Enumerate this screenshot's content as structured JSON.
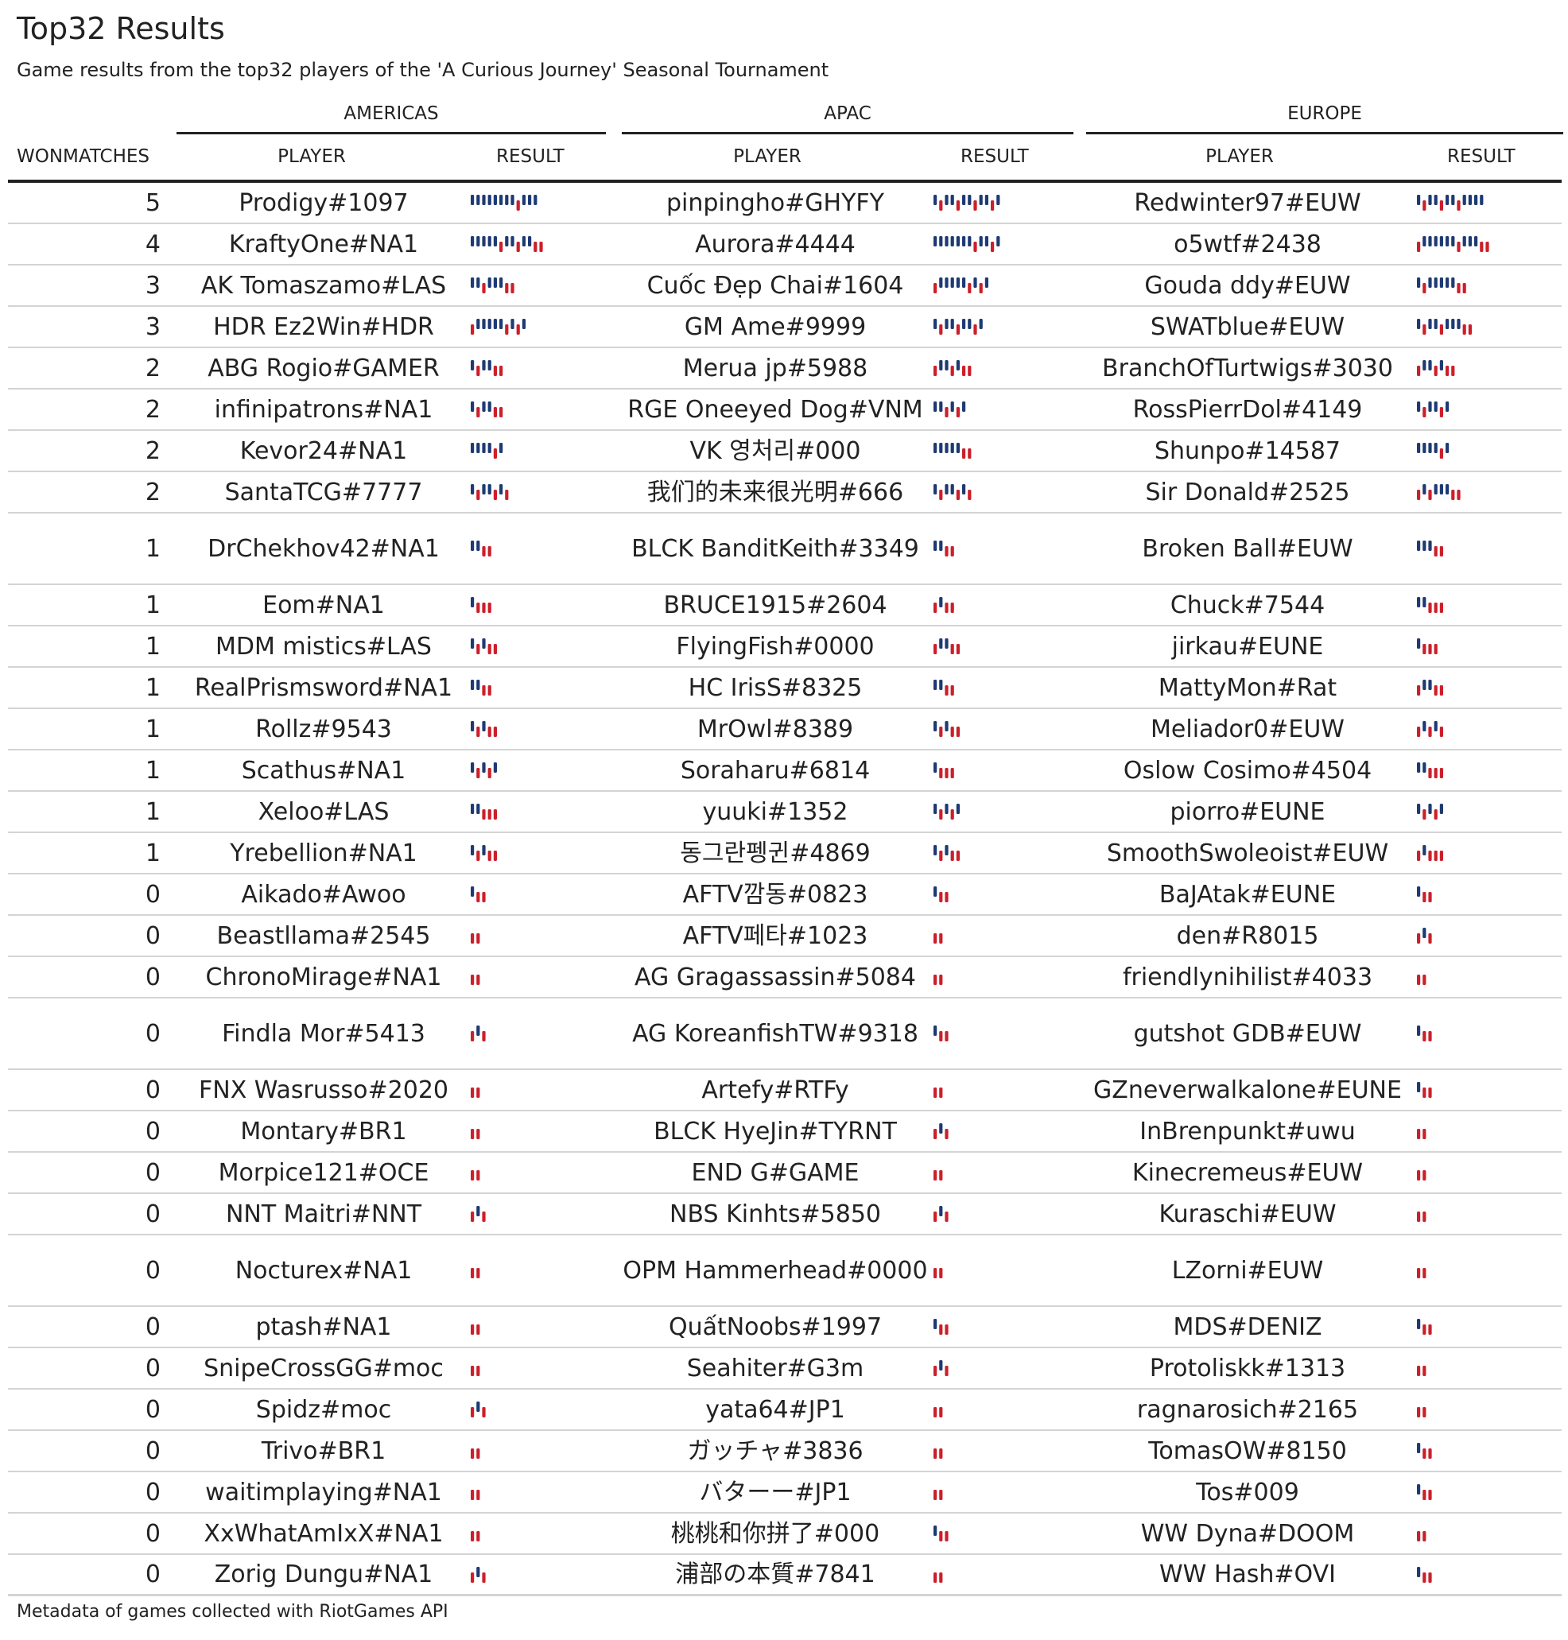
{
  "title": "Top32 Results",
  "subtitle": "Game results from the top32 players of the 'A Curious Journey' Seasonal Tournament",
  "caption": "Metadata of games collected with RiotGames API",
  "colors": {
    "win": "#1d3a73",
    "loss": "#cc1f2a",
    "text": "#222222",
    "rule": "#222222",
    "row_line": "#d4d4d4"
  },
  "columns": {
    "won": "WONMATCHES",
    "player": "PLAYER",
    "result": "RESULT"
  },
  "chart_data": {
    "type": "table",
    "groups": [
      "AMERICAS",
      "APAC",
      "EUROPE"
    ],
    "result_encoding": "W = win (tall navy bar), L = loss (short red bar)",
    "rows": [
      {
        "won": 5,
        "americas": {
          "player": "Prodigy#1097",
          "result": "WWWWWWWWLWWW"
        },
        "apac": {
          "player": "pinpingho#GHYFY",
          "result": "WLWWLWWLWWLW"
        },
        "europe": {
          "player": "Redwinter97#EUW",
          "result": "WLWWLWWLWWWW"
        }
      },
      {
        "won": 4,
        "americas": {
          "player": "KraftyOne#NA1",
          "result": "WWWWWLWWLWWLL"
        },
        "apac": {
          "player": "Aurora#4444",
          "result": "WWWWWWWLWWLW"
        },
        "europe": {
          "player": "o5wtf#2438",
          "result": "LWWWWWWLWWWLL"
        }
      },
      {
        "won": 3,
        "americas": {
          "player": "AK Tomaszamo#LAS",
          "result": "WWLWWWLL"
        },
        "apac": {
          "player": "Cuốc Đẹp Chai#1604",
          "result": "LWWWWWLWLW"
        },
        "europe": {
          "player": "Gouda ddy#EUW",
          "result": "WLWWWWWLL"
        }
      },
      {
        "won": 3,
        "americas": {
          "player": "HDR Ez2Win#HDR",
          "result": "LWWWWWLWLW"
        },
        "apac": {
          "player": "GM Ame#9999",
          "result": "WLWWLWWLW"
        },
        "europe": {
          "player": "SWATblue#EUW",
          "result": "WLWWLWWWLL"
        }
      },
      {
        "won": 2,
        "americas": {
          "player": "ABG Rogio#GAMER",
          "result": "WLWWLL"
        },
        "apac": {
          "player": "Merua jp#5988",
          "result": "LWWLWLL"
        },
        "europe": {
          "player": "BranchOfTurtwigs#3030",
          "result": "LWWLWLL"
        }
      },
      {
        "won": 2,
        "americas": {
          "player": "infinipatrons#NA1",
          "result": "WLWWLL"
        },
        "apac": {
          "player": "RGE Oneeyed Dog#VNM",
          "result": "WWLWLW"
        },
        "europe": {
          "player": "RossPierrDol#4149",
          "result": "WLWWLW"
        }
      },
      {
        "won": 2,
        "americas": {
          "player": "Kevor24#NA1",
          "result": "WWWWLW"
        },
        "apac": {
          "player": "VK 영처리#000",
          "result": "WWWWWLL"
        },
        "europe": {
          "player": "Shunpo#14587",
          "result": "WWWWLW"
        }
      },
      {
        "won": 2,
        "americas": {
          "player": "SantaTCG#7777",
          "result": "WLWWLWL"
        },
        "apac": {
          "player": "我们的未来很光明#666",
          "result": "WLWWLWL"
        },
        "europe": {
          "player": "Sir Donald#2525",
          "result": "LWLWWWLL"
        }
      },
      {
        "won": 1,
        "americas": {
          "player": "DrChekhov42#NA1",
          "result": "WWLL"
        },
        "apac": {
          "player": "BLCK BanditKeith#3349",
          "result": "WWLL"
        },
        "europe": {
          "player": "Broken Ball#EUW",
          "result": "WWWLL"
        }
      },
      {
        "won": 1,
        "americas": {
          "player": "Eom#NA1",
          "result": "WLLL"
        },
        "apac": {
          "player": "BRUCE1915#2604",
          "result": "LWLL"
        },
        "europe": {
          "player": "Chuck#7544",
          "result": "WWLLL"
        }
      },
      {
        "won": 1,
        "americas": {
          "player": "MDM mistics#LAS",
          "result": "WLWLL"
        },
        "apac": {
          "player": "FlyingFish#0000",
          "result": "LWWLL"
        },
        "europe": {
          "player": "jirkau#EUNE",
          "result": "WLLL"
        }
      },
      {
        "won": 1,
        "americas": {
          "player": "RealPrismsword#NA1",
          "result": "WWLL"
        },
        "apac": {
          "player": "HC IrisS#8325",
          "result": "WWLL"
        },
        "europe": {
          "player": "MattyMon#Rat",
          "result": "LWWLL"
        }
      },
      {
        "won": 1,
        "americas": {
          "player": "Rollz#9543",
          "result": "WLWLL"
        },
        "apac": {
          "player": "MrOwl#8389",
          "result": "WLWLL"
        },
        "europe": {
          "player": "Meliador0#EUW",
          "result": "LWLWL"
        }
      },
      {
        "won": 1,
        "americas": {
          "player": "Scathus#NA1",
          "result": "WLWLW"
        },
        "apac": {
          "player": "Soraharu#6814",
          "result": "WLLL"
        },
        "europe": {
          "player": "Oslow Cosimo#4504",
          "result": "WWLLL"
        }
      },
      {
        "won": 1,
        "americas": {
          "player": "Xeloo#LAS",
          "result": "WWLLL"
        },
        "apac": {
          "player": "yuuki#1352",
          "result": "WLWLW"
        },
        "europe": {
          "player": "piorro#EUNE",
          "result": "WLWLW"
        }
      },
      {
        "won": 1,
        "americas": {
          "player": "Yrebellion#NA1",
          "result": "WLWLL"
        },
        "apac": {
          "player": "동그란펭귄#4869",
          "result": "WLWLL"
        },
        "europe": {
          "player": "SmoothSwoleoist#EUW",
          "result": "LWLLL"
        }
      },
      {
        "won": 0,
        "americas": {
          "player": "Aikado#Awoo",
          "result": "WLL"
        },
        "apac": {
          "player": "AFTV깜동#0823",
          "result": "WLL"
        },
        "europe": {
          "player": "BaJAtak#EUNE",
          "result": "WLL"
        }
      },
      {
        "won": 0,
        "americas": {
          "player": "Beastllama#2545",
          "result": "LL"
        },
        "apac": {
          "player": "AFTV페타#1023",
          "result": "LL"
        },
        "europe": {
          "player": "den#R8015",
          "result": "LWL"
        }
      },
      {
        "won": 0,
        "americas": {
          "player": "ChronoMirage#NA1",
          "result": "LL"
        },
        "apac": {
          "player": "AG Gragassassin#5084",
          "result": "LL"
        },
        "europe": {
          "player": "friendlynihilist#4033",
          "result": "LL"
        }
      },
      {
        "won": 0,
        "americas": {
          "player": "Findla Mor#5413",
          "result": "LWL"
        },
        "apac": {
          "player": "AG KoreanfishTW#9318",
          "result": "WLL"
        },
        "europe": {
          "player": "gutshot GDB#EUW",
          "result": "WLL"
        }
      },
      {
        "won": 0,
        "americas": {
          "player": "FNX Wasrusso#2020",
          "result": "LL"
        },
        "apac": {
          "player": "Artefy#RTFy",
          "result": "LL"
        },
        "europe": {
          "player": "GZneverwalkalone#EUNE",
          "result": "WLL"
        }
      },
      {
        "won": 0,
        "americas": {
          "player": "Montary#BR1",
          "result": "LL"
        },
        "apac": {
          "player": "BLCK HyeJin#TYRNT",
          "result": "LWL"
        },
        "europe": {
          "player": "InBrenpunkt#uwu",
          "result": "LL"
        }
      },
      {
        "won": 0,
        "americas": {
          "player": "Morpice121#OCE",
          "result": "LL"
        },
        "apac": {
          "player": "END G#GAME",
          "result": "LL"
        },
        "europe": {
          "player": "Kinecremeus#EUW",
          "result": "LL"
        }
      },
      {
        "won": 0,
        "americas": {
          "player": "NNT Maitri#NNT",
          "result": "LWL"
        },
        "apac": {
          "player": "NBS Kinhts#5850",
          "result": "LWL"
        },
        "europe": {
          "player": "Kuraschi#EUW",
          "result": "LL"
        }
      },
      {
        "won": 0,
        "americas": {
          "player": "Nocturex#NA1",
          "result": "LL"
        },
        "apac": {
          "player": "OPM Hammerhead#0000",
          "result": "LL"
        },
        "europe": {
          "player": "LZorni#EUW",
          "result": "LL"
        }
      },
      {
        "won": 0,
        "americas": {
          "player": "ptash#NA1",
          "result": "LL"
        },
        "apac": {
          "player": "QuấtNoobs#1997",
          "result": "WLL"
        },
        "europe": {
          "player": "MDS#DENIZ",
          "result": "WLL"
        }
      },
      {
        "won": 0,
        "americas": {
          "player": "SnipeCrossGG#moc",
          "result": "LL"
        },
        "apac": {
          "player": "Seahiter#G3m",
          "result": "LWL"
        },
        "europe": {
          "player": "Protoliskk#1313",
          "result": "LL"
        }
      },
      {
        "won": 0,
        "americas": {
          "player": "Spidz#moc",
          "result": "LWL"
        },
        "apac": {
          "player": "yata64#JP1",
          "result": "LL"
        },
        "europe": {
          "player": "ragnarosich#2165",
          "result": "LL"
        }
      },
      {
        "won": 0,
        "americas": {
          "player": "Trivo#BR1",
          "result": "LL"
        },
        "apac": {
          "player": "ガッチャ#3836",
          "result": "LL"
        },
        "europe": {
          "player": "TomasOW#8150",
          "result": "WLL"
        }
      },
      {
        "won": 0,
        "americas": {
          "player": "waitimplaying#NA1",
          "result": "LL"
        },
        "apac": {
          "player": "バターー#JP1",
          "result": "LL"
        },
        "europe": {
          "player": "Tos#009",
          "result": "WLL"
        }
      },
      {
        "won": 0,
        "americas": {
          "player": "XxWhatAmIxX#NA1",
          "result": "LL"
        },
        "apac": {
          "player": "桃桃和你拼了#000",
          "result": "WLL"
        },
        "europe": {
          "player": "WW Dyna#DOOM",
          "result": "LL"
        }
      },
      {
        "won": 0,
        "americas": {
          "player": "Zorig Dungu#NA1",
          "result": "LWL"
        },
        "apac": {
          "player": "浦部の本質#7841",
          "result": "LL"
        },
        "europe": {
          "player": "WW Hash#OVI",
          "result": "WLL"
        }
      }
    ]
  }
}
